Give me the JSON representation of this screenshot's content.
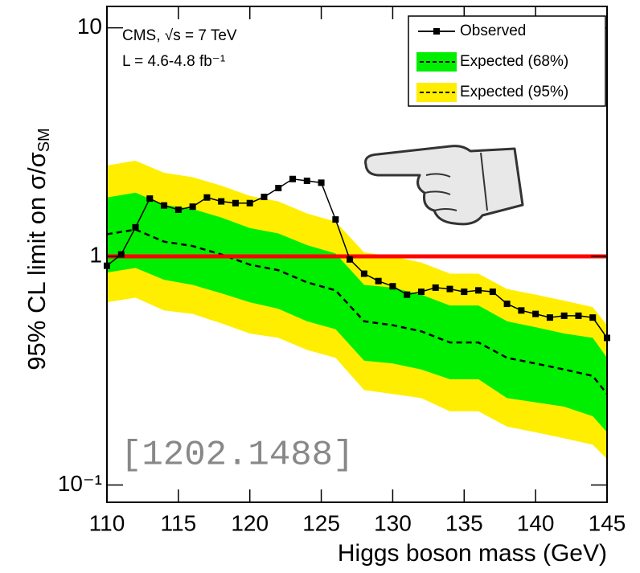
{
  "chart_data": {
    "type": "line",
    "annotations": [
      "CMS, √s = 7 TeV",
      "L = 4.6-4.8 fb⁻¹",
      "[1202.1488]"
    ],
    "x_label": "Higgs boson mass (GeV)",
    "y_label": "95% CL limit on σ/σ",
    "y_label_sub": "SM",
    "xlim": [
      110,
      145
    ],
    "xticks": [
      110,
      115,
      120,
      125,
      130,
      135,
      140,
      145
    ],
    "ylim": [
      0.084,
      12.4
    ],
    "yticks": [
      {
        "value": 0.1,
        "label": "10⁻¹"
      },
      1,
      10
    ],
    "log_y": true,
    "legend": "upper right",
    "reference_line": {
      "value": 1,
      "color": "#ff0000"
    },
    "bands": [
      {
        "name": "Expected (95%)",
        "color": "#ffee00",
        "lower": [
          0.63,
          0.66,
          0.58,
          0.56,
          0.51,
          0.46,
          0.44,
          0.39,
          0.36,
          0.26,
          0.25,
          0.24,
          0.21,
          0.21,
          0.18,
          0.17,
          0.16,
          0.15,
          0.13
        ],
        "upper": [
          2.5,
          2.62,
          2.32,
          2.22,
          2.04,
          1.84,
          1.74,
          1.54,
          1.42,
          1.04,
          1.0,
          0.94,
          0.84,
          0.84,
          0.72,
          0.68,
          0.64,
          0.6,
          0.5
        ]
      },
      {
        "name": "Expected (68%)",
        "color": "#00ee00",
        "lower": [
          0.85,
          0.89,
          0.79,
          0.75,
          0.69,
          0.63,
          0.59,
          0.52,
          0.48,
          0.35,
          0.34,
          0.32,
          0.29,
          0.29,
          0.24,
          0.23,
          0.22,
          0.2,
          0.17
        ],
        "upper": [
          1.81,
          1.9,
          1.68,
          1.61,
          1.48,
          1.33,
          1.26,
          1.12,
          1.03,
          0.75,
          0.73,
          0.68,
          0.61,
          0.61,
          0.52,
          0.49,
          0.46,
          0.44,
          0.36
        ]
      }
    ],
    "expected": {
      "color": "#000000",
      "x": [
        110,
        112,
        114,
        116,
        118,
        120,
        122,
        124,
        126,
        128,
        130,
        132,
        134,
        136,
        138,
        140,
        142,
        144,
        145
      ],
      "values": [
        1.25,
        1.31,
        1.16,
        1.11,
        1.02,
        0.92,
        0.87,
        0.77,
        0.71,
        0.52,
        0.5,
        0.47,
        0.42,
        0.42,
        0.36,
        0.34,
        0.32,
        0.3,
        0.25
      ]
    },
    "series": [
      {
        "name": "Observed",
        "color": "#000000",
        "x": [
          110,
          111,
          112,
          113,
          114,
          115,
          116,
          117,
          118,
          119,
          120,
          121,
          122,
          123,
          124,
          125,
          126,
          127,
          128,
          129,
          130,
          131,
          132,
          133,
          134,
          135,
          136,
          137,
          138,
          139,
          140,
          141,
          142,
          143,
          144,
          145
        ],
        "values": [
          0.91,
          1.02,
          1.34,
          1.79,
          1.67,
          1.6,
          1.65,
          1.81,
          1.74,
          1.71,
          1.71,
          1.82,
          1.99,
          2.18,
          2.14,
          2.1,
          1.45,
          0.97,
          0.84,
          0.78,
          0.74,
          0.68,
          0.7,
          0.73,
          0.72,
          0.7,
          0.71,
          0.7,
          0.62,
          0.58,
          0.56,
          0.54,
          0.55,
          0.55,
          0.54,
          0.44
        ]
      }
    ]
  }
}
